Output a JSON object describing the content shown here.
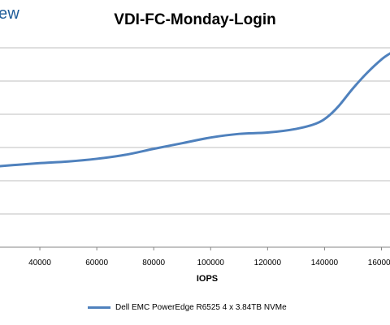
{
  "brand": {
    "text": "ew"
  },
  "chart_data": {
    "type": "line",
    "title": "VDI-FC-Monday-Login",
    "xlabel": "IOPS",
    "ylabel": "",
    "x_ticks": [
      40000,
      60000,
      80000,
      100000,
      120000,
      140000,
      160000
    ],
    "x_tick_labels": [
      "40000",
      "60000",
      "80000",
      "100000",
      "120000",
      "140000",
      "160000"
    ],
    "xlim": [
      26000,
      163000
    ],
    "grid": true,
    "legend_position": "bottom",
    "series": [
      {
        "name": "Dell EMC PowerEdge R6525 4 x 3.84TB NVMe",
        "color": "#4f81bd",
        "points": [
          [
            26000,
            0.244
          ],
          [
            32000,
            0.248
          ],
          [
            40000,
            0.253
          ],
          [
            50000,
            0.258
          ],
          [
            60000,
            0.266
          ],
          [
            70000,
            0.278
          ],
          [
            80000,
            0.296
          ],
          [
            90000,
            0.313
          ],
          [
            100000,
            0.33
          ],
          [
            110000,
            0.341
          ],
          [
            120000,
            0.345
          ],
          [
            130000,
            0.356
          ],
          [
            137000,
            0.372
          ],
          [
            141000,
            0.392
          ],
          [
            145000,
            0.425
          ],
          [
            150000,
            0.478
          ],
          [
            155000,
            0.525
          ],
          [
            160000,
            0.565
          ],
          [
            163000,
            0.583
          ]
        ]
      }
    ]
  }
}
